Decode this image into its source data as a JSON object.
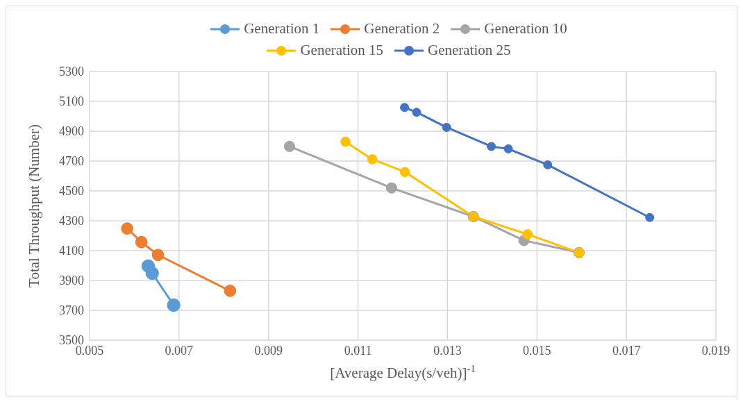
{
  "chart_data": {
    "type": "line",
    "xlabel": "[Average Delay(s/veh)]$^{-1}$",
    "ylabel": "Total Throughput (Number)",
    "xlim": [
      0.005,
      0.019
    ],
    "xticks": [
      0.005,
      0.007,
      0.009,
      0.011,
      0.013,
      0.015,
      0.017,
      0.019
    ],
    "ylim": [
      3500,
      5300
    ],
    "yticks": [
      3500,
      3700,
      3900,
      4100,
      4300,
      4500,
      4700,
      4900,
      5100,
      5300
    ],
    "grid": true,
    "legend": "top",
    "marker": "circle",
    "line_style": "solid",
    "series": [
      {
        "name": "Generation 1",
        "color": "#5b9bd5",
        "x": [
          0.00631,
          0.0064,
          0.00688
        ],
        "values": [
          3997,
          3949,
          3735
        ]
      },
      {
        "name": "Generation 2",
        "color": "#ed7d31",
        "x": [
          0.00584,
          0.00616,
          0.00653,
          0.00814
        ],
        "values": [
          4248,
          4157,
          4071,
          3831
        ]
      },
      {
        "name": "Generation 10",
        "color": "#a5a5a5",
        "x": [
          0.00947,
          0.01175,
          0.01358,
          0.01471,
          0.01594
        ],
        "values": [
          4798,
          4520,
          4328,
          4168,
          4087
        ]
      },
      {
        "name": "Generation 15",
        "color": "#ffc000",
        "x": [
          0.01072,
          0.01132,
          0.01205,
          0.01358,
          0.01479,
          0.01594
        ],
        "values": [
          4830,
          4712,
          4627,
          4328,
          4210,
          4087
        ]
      },
      {
        "name": "Generation 25",
        "color": "#4472c4",
        "x": [
          0.01204,
          0.01231,
          0.01298,
          0.01398,
          0.01436,
          0.01524,
          0.01752
        ],
        "values": [
          5059,
          5027,
          4926,
          4798,
          4782,
          4675,
          4322
        ]
      }
    ]
  }
}
